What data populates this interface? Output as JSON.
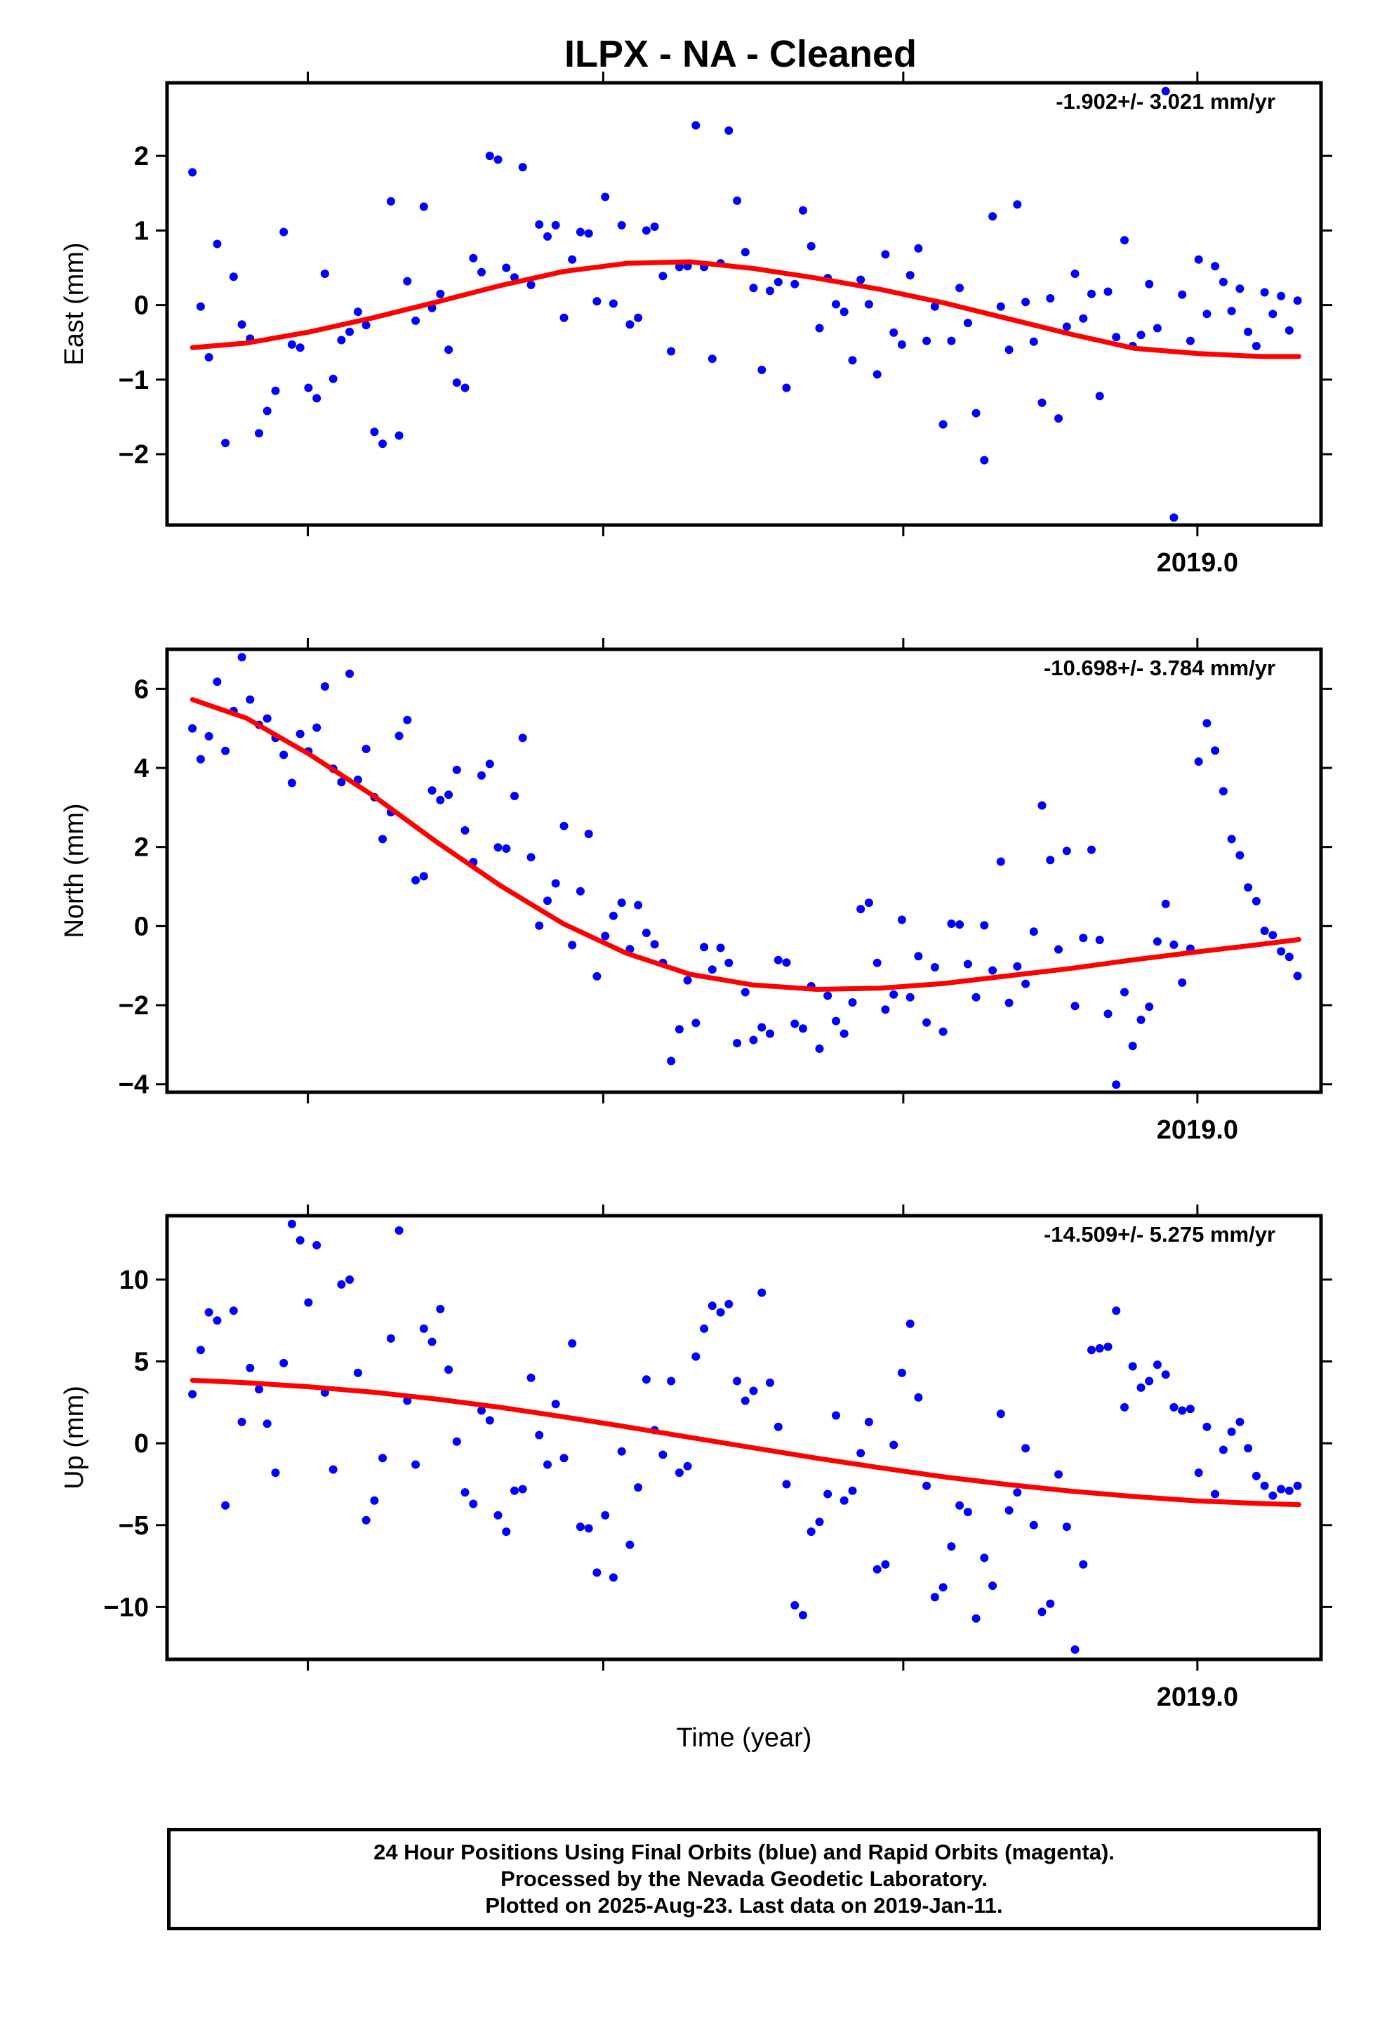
{
  "title": "ILPX  - NA - Cleaned",
  "x_axis_label": "Time (year)",
  "footer": {
    "line1": "24 Hour Positions Using Final Orbits (blue) and Rapid Orbits (magenta).",
    "line2": "Processed by the Nevada Geodetic Laboratory.",
    "line3": "Plotted on 2025-Aug-23. Last data on 2019-Jan-11."
  },
  "colors": {
    "points": "#0000ff",
    "fit": "#ff0000",
    "frame": "#000000"
  },
  "chart_data": [
    {
      "type": "scatter",
      "ylabel": "East (mm)",
      "rate_label": "-1.902+/- 3.021 mm/yr",
      "xlim": [
        2017.375,
        2019.195
      ],
      "ylim": [
        -2.95,
        2.98
      ],
      "yticks": [
        -2,
        -1,
        0,
        1,
        2
      ],
      "ytick_labels": [
        "−2",
        "−1",
        "0",
        "1",
        "2"
      ],
      "xtick_labels": [
        {
          "x": 2019.0,
          "label": "2019.0"
        }
      ],
      "grid": false,
      "fit": [
        [
          2017.415,
          -0.57
        ],
        [
          2017.5,
          -0.51
        ],
        [
          2017.6,
          -0.36
        ],
        [
          2017.7,
          -0.17
        ],
        [
          2017.8,
          0.04
        ],
        [
          2017.9,
          0.26
        ],
        [
          2018.0,
          0.45
        ],
        [
          2018.1,
          0.56
        ],
        [
          2018.2,
          0.58
        ],
        [
          2018.3,
          0.49
        ],
        [
          2018.4,
          0.36
        ],
        [
          2018.5,
          0.21
        ],
        [
          2018.6,
          0.03
        ],
        [
          2018.7,
          -0.18
        ],
        [
          2018.8,
          -0.39
        ],
        [
          2018.9,
          -0.58
        ],
        [
          2019.0,
          -0.65
        ],
        [
          2019.1,
          -0.69
        ],
        [
          2019.16,
          -0.69
        ]
      ],
      "x": [
        2017.415,
        2017.428,
        2017.441,
        2017.454,
        2017.467,
        2017.48,
        2017.493,
        2017.506,
        2017.52,
        2017.533,
        2017.546,
        2017.559,
        2017.572,
        2017.585,
        2017.598,
        2017.611,
        2017.624,
        2017.637,
        2017.65,
        2017.663,
        2017.676,
        2017.689,
        2017.702,
        2017.715,
        2017.728,
        2017.741,
        2017.754,
        2017.767,
        2017.78,
        2017.793,
        2017.806,
        2017.819,
        2017.832,
        2017.845,
        2017.858,
        2017.871,
        2017.884,
        2017.897,
        2017.91,
        2017.923,
        2017.936,
        2017.949,
        2017.962,
        2017.975,
        2017.988,
        2018.001,
        2018.014,
        2018.027,
        2018.04,
        2018.053,
        2018.066,
        2018.079,
        2018.092,
        2018.105,
        2018.118,
        2018.131,
        2018.144,
        2018.157,
        2018.17,
        2018.183,
        2018.196,
        2018.209,
        2018.222,
        2018.235,
        2018.248,
        2018.261,
        2018.274,
        2018.287,
        2018.3,
        2018.313,
        2018.326,
        2018.339,
        2018.352,
        2018.365,
        2018.378,
        2018.391,
        2018.404,
        2018.417,
        2018.43,
        2018.443,
        2018.456,
        2018.469,
        2018.482,
        2018.495,
        2018.508,
        2018.521,
        2018.534,
        2018.547,
        2018.56,
        2018.573,
        2018.586,
        2018.599,
        2018.612,
        2018.625,
        2018.638,
        2018.651,
        2018.664,
        2018.677,
        2018.69,
        2018.703,
        2018.716,
        2018.729,
        2018.742,
        2018.755,
        2018.768,
        2018.781,
        2018.794,
        2018.807,
        2018.82,
        2018.833,
        2018.846,
        2018.859,
        2018.872,
        2018.885,
        2018.898,
        2018.911,
        2018.924,
        2018.937,
        2018.95,
        2018.963,
        2018.976,
        2018.989,
        2019.002,
        2019.015,
        2019.028,
        2019.041,
        2019.054,
        2019.067,
        2019.08,
        2019.093,
        2019.106,
        2019.119,
        2019.132,
        2019.145,
        2019.158
      ],
      "y": [
        1.78,
        -0.02,
        -0.7,
        0.82,
        -1.85,
        0.38,
        -0.26,
        -0.45,
        -1.72,
        -1.42,
        -1.15,
        0.98,
        -0.53,
        -0.57,
        -1.11,
        -1.25,
        0.42,
        -0.99,
        -0.47,
        -0.36,
        -0.09,
        -0.27,
        -1.7,
        -1.86,
        1.39,
        -1.75,
        0.32,
        -0.21,
        1.32,
        -0.04,
        0.15,
        -0.6,
        -1.04,
        -1.11,
        0.63,
        0.44,
        2.0,
        1.95,
        0.5,
        0.37,
        1.85,
        0.27,
        1.08,
        0.92,
        1.07,
        -0.17,
        0.61,
        0.98,
        0.96,
        0.05,
        1.45,
        0.02,
        1.07,
        -0.26,
        -0.17,
        1.0,
        1.05,
        0.39,
        -0.62,
        0.51,
        0.52,
        2.41,
        0.51,
        -0.72,
        0.56,
        2.34,
        1.4,
        0.71,
        0.23,
        -0.87,
        0.19,
        0.31,
        -1.11,
        0.28,
        1.27,
        0.79,
        -0.31,
        0.36,
        0.01,
        -0.09,
        -0.74,
        0.34,
        0.01,
        -0.93,
        0.68,
        -0.37,
        -0.53,
        0.4,
        0.76,
        -0.48,
        -0.02,
        -1.6,
        -0.48,
        0.23,
        -0.24,
        -1.45,
        -2.08,
        1.19,
        -0.02,
        -0.6,
        1.35,
        0.04,
        -0.49,
        -1.31,
        0.09,
        -1.52,
        -0.29,
        0.42,
        -0.18,
        0.15,
        -1.22,
        0.18,
        -0.43,
        0.87,
        -0.55,
        -0.4,
        0.28,
        -0.31,
        2.87,
        -2.85,
        0.14,
        -0.48,
        0.61,
        -0.12,
        0.52,
        0.31,
        -0.08,
        0.22,
        -0.36,
        -0.55,
        0.17,
        -0.12,
        0.12,
        -0.34,
        0.06
      ]
    },
    {
      "type": "scatter",
      "ylabel": "North (mm)",
      "rate_label": "-10.698+/- 3.784 mm/yr",
      "xlim": [
        2017.375,
        2019.195
      ],
      "ylim": [
        -4.2,
        7.0
      ],
      "yticks": [
        -4,
        -2,
        0,
        2,
        4,
        6
      ],
      "ytick_labels": [
        "−4",
        "−2",
        "0",
        "2",
        "4",
        "6"
      ],
      "xtick_labels": [
        {
          "x": 2019.0,
          "label": "2019.0"
        }
      ],
      "grid": false,
      "fit": [
        [
          2017.415,
          5.73
        ],
        [
          2017.5,
          5.26
        ],
        [
          2017.6,
          4.34
        ],
        [
          2017.7,
          3.3
        ],
        [
          2017.8,
          2.13
        ],
        [
          2017.9,
          1.03
        ],
        [
          2018.0,
          0.06
        ],
        [
          2018.1,
          -0.69
        ],
        [
          2018.2,
          -1.22
        ],
        [
          2018.3,
          -1.49
        ],
        [
          2018.4,
          -1.6
        ],
        [
          2018.5,
          -1.57
        ],
        [
          2018.6,
          -1.45
        ],
        [
          2018.7,
          -1.26
        ],
        [
          2018.8,
          -1.07
        ],
        [
          2018.9,
          -0.85
        ],
        [
          2019.0,
          -0.65
        ],
        [
          2019.1,
          -0.46
        ],
        [
          2019.16,
          -0.34
        ]
      ],
      "x": [
        2017.415,
        2017.428,
        2017.441,
        2017.454,
        2017.467,
        2017.48,
        2017.493,
        2017.506,
        2017.52,
        2017.533,
        2017.546,
        2017.559,
        2017.572,
        2017.585,
        2017.598,
        2017.611,
        2017.624,
        2017.637,
        2017.65,
        2017.663,
        2017.676,
        2017.689,
        2017.702,
        2017.715,
        2017.728,
        2017.741,
        2017.754,
        2017.767,
        2017.78,
        2017.793,
        2017.806,
        2017.819,
        2017.832,
        2017.845,
        2017.858,
        2017.871,
        2017.884,
        2017.897,
        2017.91,
        2017.923,
        2017.936,
        2017.949,
        2017.962,
        2017.975,
        2017.988,
        2018.001,
        2018.014,
        2018.027,
        2018.04,
        2018.053,
        2018.066,
        2018.079,
        2018.092,
        2018.105,
        2018.118,
        2018.131,
        2018.144,
        2018.157,
        2018.17,
        2018.183,
        2018.196,
        2018.209,
        2018.222,
        2018.235,
        2018.248,
        2018.261,
        2018.274,
        2018.287,
        2018.3,
        2018.313,
        2018.326,
        2018.339,
        2018.352,
        2018.365,
        2018.378,
        2018.391,
        2018.404,
        2018.417,
        2018.43,
        2018.443,
        2018.456,
        2018.469,
        2018.482,
        2018.495,
        2018.508,
        2018.521,
        2018.534,
        2018.547,
        2018.56,
        2018.573,
        2018.586,
        2018.599,
        2018.612,
        2018.625,
        2018.638,
        2018.651,
        2018.664,
        2018.677,
        2018.69,
        2018.703,
        2018.716,
        2018.729,
        2018.742,
        2018.755,
        2018.768,
        2018.781,
        2018.794,
        2018.807,
        2018.82,
        2018.833,
        2018.846,
        2018.859,
        2018.872,
        2018.885,
        2018.898,
        2018.911,
        2018.924,
        2018.937,
        2018.95,
        2018.963,
        2018.976,
        2018.989,
        2019.002,
        2019.015,
        2019.028,
        2019.041,
        2019.054,
        2019.067,
        2019.08,
        2019.093,
        2019.106,
        2019.119,
        2019.132,
        2019.145,
        2019.158
      ],
      "y": [
        5.0,
        4.22,
        4.8,
        6.18,
        4.43,
        5.44,
        6.8,
        5.73,
        5.09,
        5.25,
        4.76,
        4.33,
        3.62,
        4.86,
        4.42,
        5.02,
        6.06,
        3.98,
        3.64,
        6.38,
        3.7,
        4.48,
        3.26,
        2.2,
        2.88,
        4.81,
        5.21,
        1.16,
        1.26,
        3.43,
        3.19,
        3.32,
        3.95,
        2.42,
        1.62,
        3.81,
        4.1,
        1.99,
        1.96,
        3.29,
        4.76,
        1.74,
        0.01,
        0.64,
        1.08,
        2.53,
        -0.48,
        0.88,
        2.33,
        -1.27,
        -0.25,
        0.26,
        0.59,
        -0.58,
        0.53,
        -0.17,
        -0.46,
        -0.93,
        -3.41,
        -2.61,
        -1.37,
        -2.45,
        -0.53,
        -1.1,
        -0.55,
        -0.93,
        -2.96,
        -1.67,
        -2.88,
        -2.56,
        -2.72,
        -0.86,
        -0.92,
        -2.47,
        -2.59,
        -1.52,
        -3.1,
        -1.76,
        -2.4,
        -2.72,
        -1.93,
        0.43,
        0.59,
        -0.93,
        -2.11,
        -1.73,
        0.16,
        -1.8,
        -0.76,
        -2.44,
        -1.04,
        -2.67,
        0.06,
        0.04,
        -0.96,
        -1.8,
        0.02,
        -1.12,
        1.63,
        -1.94,
        -1.02,
        -1.46,
        -0.14,
        3.05,
        1.67,
        -0.59,
        1.9,
        -2.02,
        -0.3,
        1.93,
        -0.35,
        -2.22,
        -4.01,
        -1.67,
        -3.03,
        -2.37,
        -2.04,
        -0.39,
        0.56,
        -0.47,
        -1.43,
        -0.57,
        4.16,
        5.13,
        4.44,
        3.41,
        2.2,
        1.79,
        0.98,
        0.63,
        -0.12,
        -0.23,
        -0.64,
        -0.78,
        -1.26
      ]
    },
    {
      "type": "scatter",
      "ylabel": "Up (mm)",
      "rate_label": "-14.509+/- 5.275 mm/yr",
      "xlim": [
        2017.375,
        2019.195
      ],
      "ylim": [
        -13.2,
        13.9
      ],
      "yticks": [
        -10,
        -5,
        0,
        5,
        10
      ],
      "ytick_labels": [
        "−10",
        "−5",
        "0",
        "5",
        "10"
      ],
      "xtick_labels": [
        {
          "x": 2019.0,
          "label": "2019.0"
        }
      ],
      "grid": false,
      "fit": [
        [
          2017.415,
          3.85
        ],
        [
          2017.5,
          3.7
        ],
        [
          2017.6,
          3.45
        ],
        [
          2017.7,
          3.12
        ],
        [
          2017.8,
          2.7
        ],
        [
          2017.9,
          2.2
        ],
        [
          2018.0,
          1.62
        ],
        [
          2018.1,
          1.0
        ],
        [
          2018.2,
          0.36
        ],
        [
          2018.3,
          -0.28
        ],
        [
          2018.4,
          -0.91
        ],
        [
          2018.5,
          -1.5
        ],
        [
          2018.6,
          -2.05
        ],
        [
          2018.7,
          -2.52
        ],
        [
          2018.8,
          -2.92
        ],
        [
          2018.9,
          -3.25
        ],
        [
          2019.0,
          -3.52
        ],
        [
          2019.1,
          -3.68
        ],
        [
          2019.16,
          -3.75
        ]
      ],
      "x": [
        2017.415,
        2017.428,
        2017.441,
        2017.454,
        2017.467,
        2017.48,
        2017.493,
        2017.506,
        2017.52,
        2017.533,
        2017.546,
        2017.559,
        2017.572,
        2017.585,
        2017.598,
        2017.611,
        2017.624,
        2017.637,
        2017.65,
        2017.663,
        2017.676,
        2017.689,
        2017.702,
        2017.715,
        2017.728,
        2017.741,
        2017.754,
        2017.767,
        2017.78,
        2017.793,
        2017.806,
        2017.819,
        2017.832,
        2017.845,
        2017.858,
        2017.871,
        2017.884,
        2017.897,
        2017.91,
        2017.923,
        2017.936,
        2017.949,
        2017.962,
        2017.975,
        2017.988,
        2018.001,
        2018.014,
        2018.027,
        2018.04,
        2018.053,
        2018.066,
        2018.079,
        2018.092,
        2018.105,
        2018.118,
        2018.131,
        2018.144,
        2018.157,
        2018.17,
        2018.183,
        2018.196,
        2018.209,
        2018.222,
        2018.235,
        2018.248,
        2018.261,
        2018.274,
        2018.287,
        2018.3,
        2018.313,
        2018.326,
        2018.339,
        2018.352,
        2018.365,
        2018.378,
        2018.391,
        2018.404,
        2018.417,
        2018.43,
        2018.443,
        2018.456,
        2018.469,
        2018.482,
        2018.495,
        2018.508,
        2018.521,
        2018.534,
        2018.547,
        2018.56,
        2018.573,
        2018.586,
        2018.599,
        2018.612,
        2018.625,
        2018.638,
        2018.651,
        2018.664,
        2018.677,
        2018.69,
        2018.703,
        2018.716,
        2018.729,
        2018.742,
        2018.755,
        2018.768,
        2018.781,
        2018.794,
        2018.807,
        2018.82,
        2018.833,
        2018.846,
        2018.859,
        2018.872,
        2018.885,
        2018.898,
        2018.911,
        2018.924,
        2018.937,
        2018.95,
        2018.963,
        2018.976,
        2018.989,
        2019.002,
        2019.015,
        2019.028,
        2019.041,
        2019.054,
        2019.067,
        2019.08,
        2019.093,
        2019.106,
        2019.119,
        2019.132,
        2019.145,
        2019.158
      ],
      "y": [
        3.0,
        5.7,
        8.0,
        7.5,
        -3.8,
        8.1,
        1.3,
        4.6,
        3.3,
        1.2,
        -1.8,
        4.9,
        13.4,
        12.4,
        8.6,
        12.1,
        3.1,
        -1.6,
        9.7,
        10.0,
        4.3,
        -4.7,
        -3.5,
        -0.9,
        6.4,
        13.0,
        2.6,
        -1.3,
        7.0,
        6.2,
        8.2,
        4.5,
        0.1,
        -3.0,
        -3.7,
        2.0,
        1.4,
        -4.4,
        -5.4,
        -2.9,
        -2.8,
        4.0,
        0.5,
        -1.3,
        2.4,
        -0.9,
        6.1,
        -5.1,
        -5.2,
        -7.9,
        -4.4,
        -8.2,
        -0.5,
        -6.2,
        -2.7,
        3.9,
        0.8,
        -0.7,
        3.8,
        -1.8,
        -1.4,
        5.3,
        7.0,
        8.4,
        8.0,
        8.5,
        3.8,
        2.6,
        3.2,
        9.2,
        3.7,
        1.0,
        -2.5,
        -9.9,
        -10.5,
        -5.4,
        -4.8,
        -3.1,
        1.7,
        -3.5,
        -2.9,
        -0.6,
        1.3,
        -7.7,
        -7.4,
        -0.1,
        4.3,
        7.3,
        2.8,
        -2.6,
        -9.4,
        -8.8,
        -6.3,
        -3.8,
        -4.2,
        -10.7,
        -7.0,
        -8.7,
        1.8,
        -4.1,
        -3.0,
        -0.3,
        -5.0,
        -10.3,
        -9.8,
        -1.9,
        -5.1,
        -12.6,
        -7.4,
        5.7,
        5.8,
        5.9,
        8.1,
        2.2,
        4.7,
        3.4,
        3.8,
        4.8,
        4.2,
        2.2,
        2.0,
        2.1,
        -1.8,
        1.0,
        -3.1,
        -0.4,
        0.7,
        1.3,
        -0.3,
        -2.0,
        -2.6,
        -3.2,
        -2.8,
        -2.9,
        -2.6
      ]
    }
  ]
}
